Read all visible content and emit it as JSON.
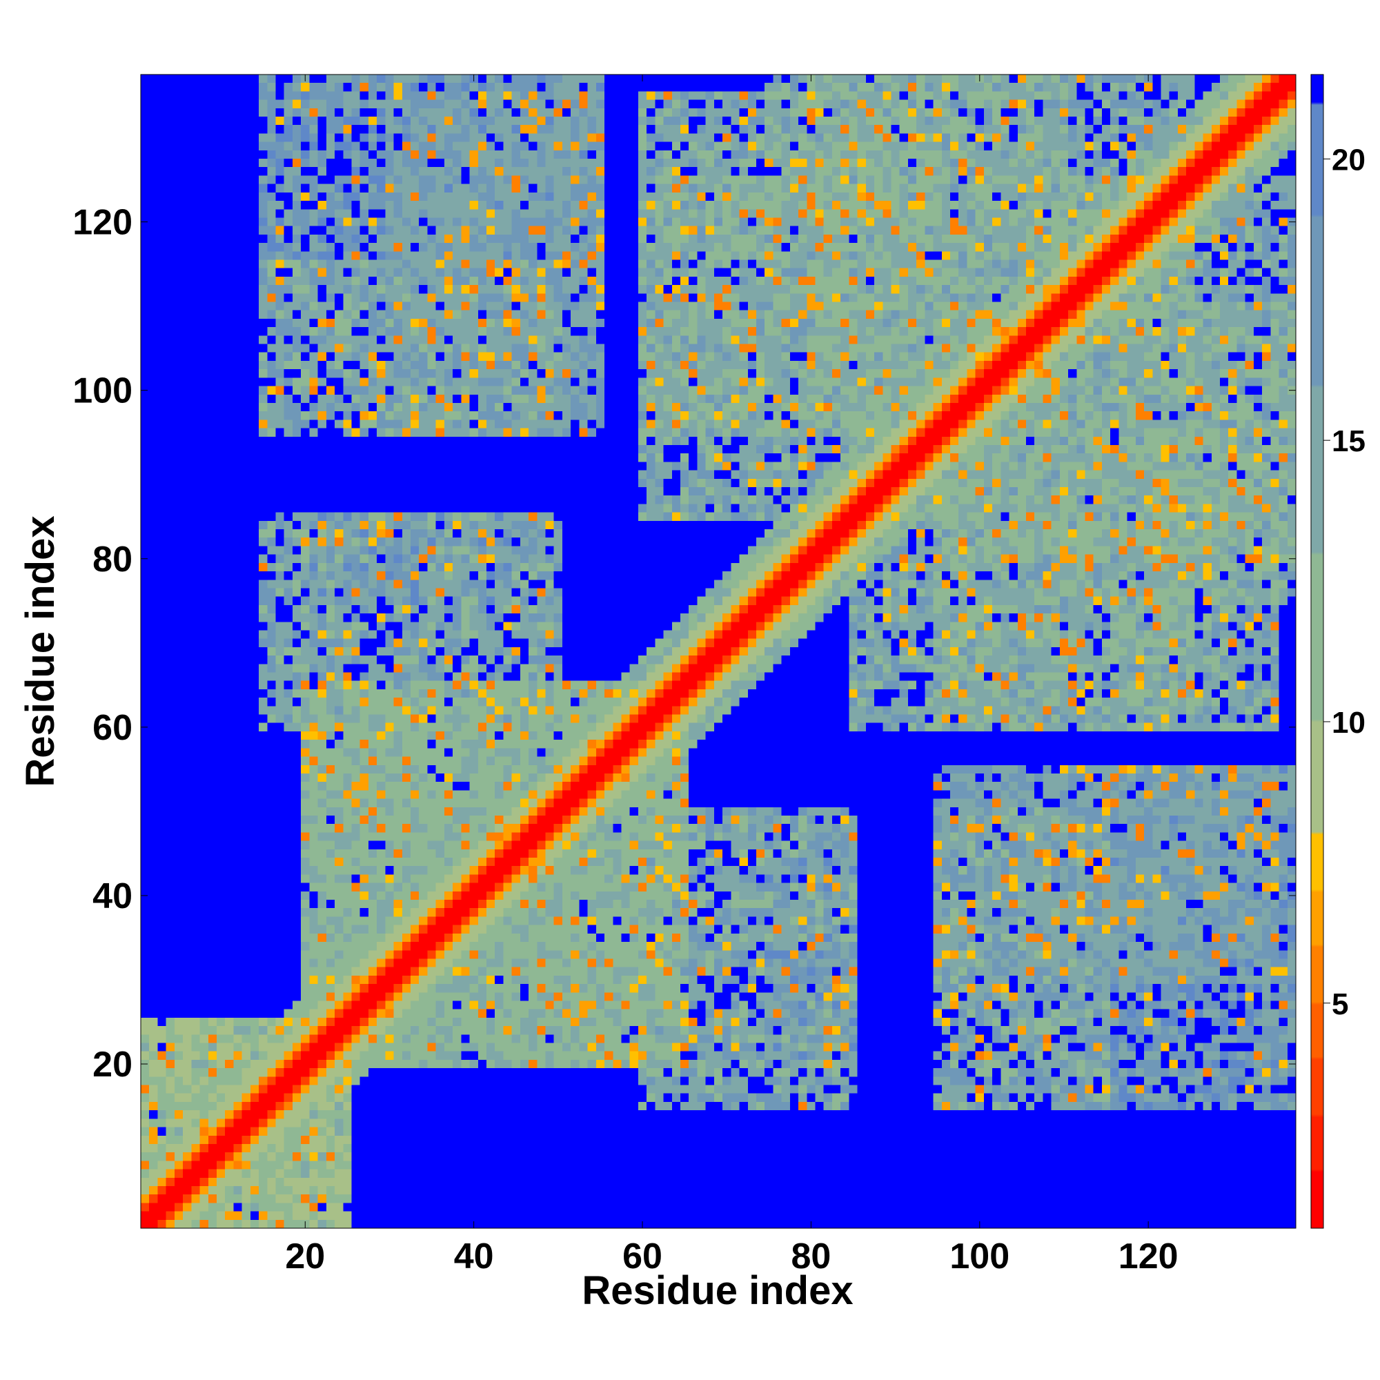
{
  "chart_data": {
    "type": "heatmap",
    "title": "",
    "xlabel": "Residue index",
    "ylabel": "Residue index",
    "n_residues": 137,
    "xlim": [
      1,
      137
    ],
    "ylim": [
      1,
      137
    ],
    "x_ticks": [
      20,
      40,
      60,
      80,
      100,
      120
    ],
    "y_ticks": [
      20,
      40,
      60,
      80,
      100,
      120
    ],
    "colorbar": {
      "range": [
        1,
        21.5
      ],
      "ticks": [
        5,
        10,
        15,
        20
      ],
      "colors_low_to_high": [
        "#ff0000",
        "#ff2000",
        "#ff4000",
        "#ff6000",
        "#ff8000",
        "#ffa000",
        "#ffc000",
        "#a8c088",
        "#8fb894",
        "#7fa8a8",
        "#6f98b8",
        "#5f88c8",
        "#0000ff"
      ],
      "boundaries": [
        1,
        2,
        3,
        4,
        5,
        6,
        7,
        8,
        10,
        13,
        16,
        19,
        21,
        21.5
      ]
    },
    "matrix_description": "symmetric residue-residue distance map; values clipped at 21",
    "diagonal_band": {
      "value_on_diagonal": 2,
      "band_width_residues": 12
    },
    "contact_blocks": [
      {
        "x": [
          1,
          25
        ],
        "y": [
          1,
          25
        ],
        "value": 11
      },
      {
        "x": [
          20,
          65
        ],
        "y": [
          20,
          65
        ],
        "value": 13
      },
      {
        "x": [
          30,
          55
        ],
        "y": [
          95,
          135
        ],
        "value": 16
      },
      {
        "x": [
          20,
          45
        ],
        "y": [
          75,
          85
        ],
        "value": 18
      },
      {
        "x": [
          60,
          85
        ],
        "y": [
          15,
          50
        ],
        "value": 15
      },
      {
        "x": [
          60,
          90
        ],
        "y": [
          85,
          135
        ],
        "value": 15
      },
      {
        "x": [
          80,
          110
        ],
        "y": [
          95,
          137
        ],
        "value": 14
      },
      {
        "x": [
          95,
          125
        ],
        "y": [
          60,
          95
        ],
        "value": 14
      },
      {
        "x": [
          95,
          115
        ],
        "y": [
          15,
          50
        ],
        "value": 15
      },
      {
        "x": [
          120,
          137
        ],
        "y": [
          75,
          95
        ],
        "value": 14
      },
      {
        "x": [
          115,
          137
        ],
        "y": [
          15,
          55
        ],
        "value": 17
      },
      {
        "x": [
          105,
          137
        ],
        "y": [
          95,
          125
        ],
        "value": 15
      }
    ]
  }
}
